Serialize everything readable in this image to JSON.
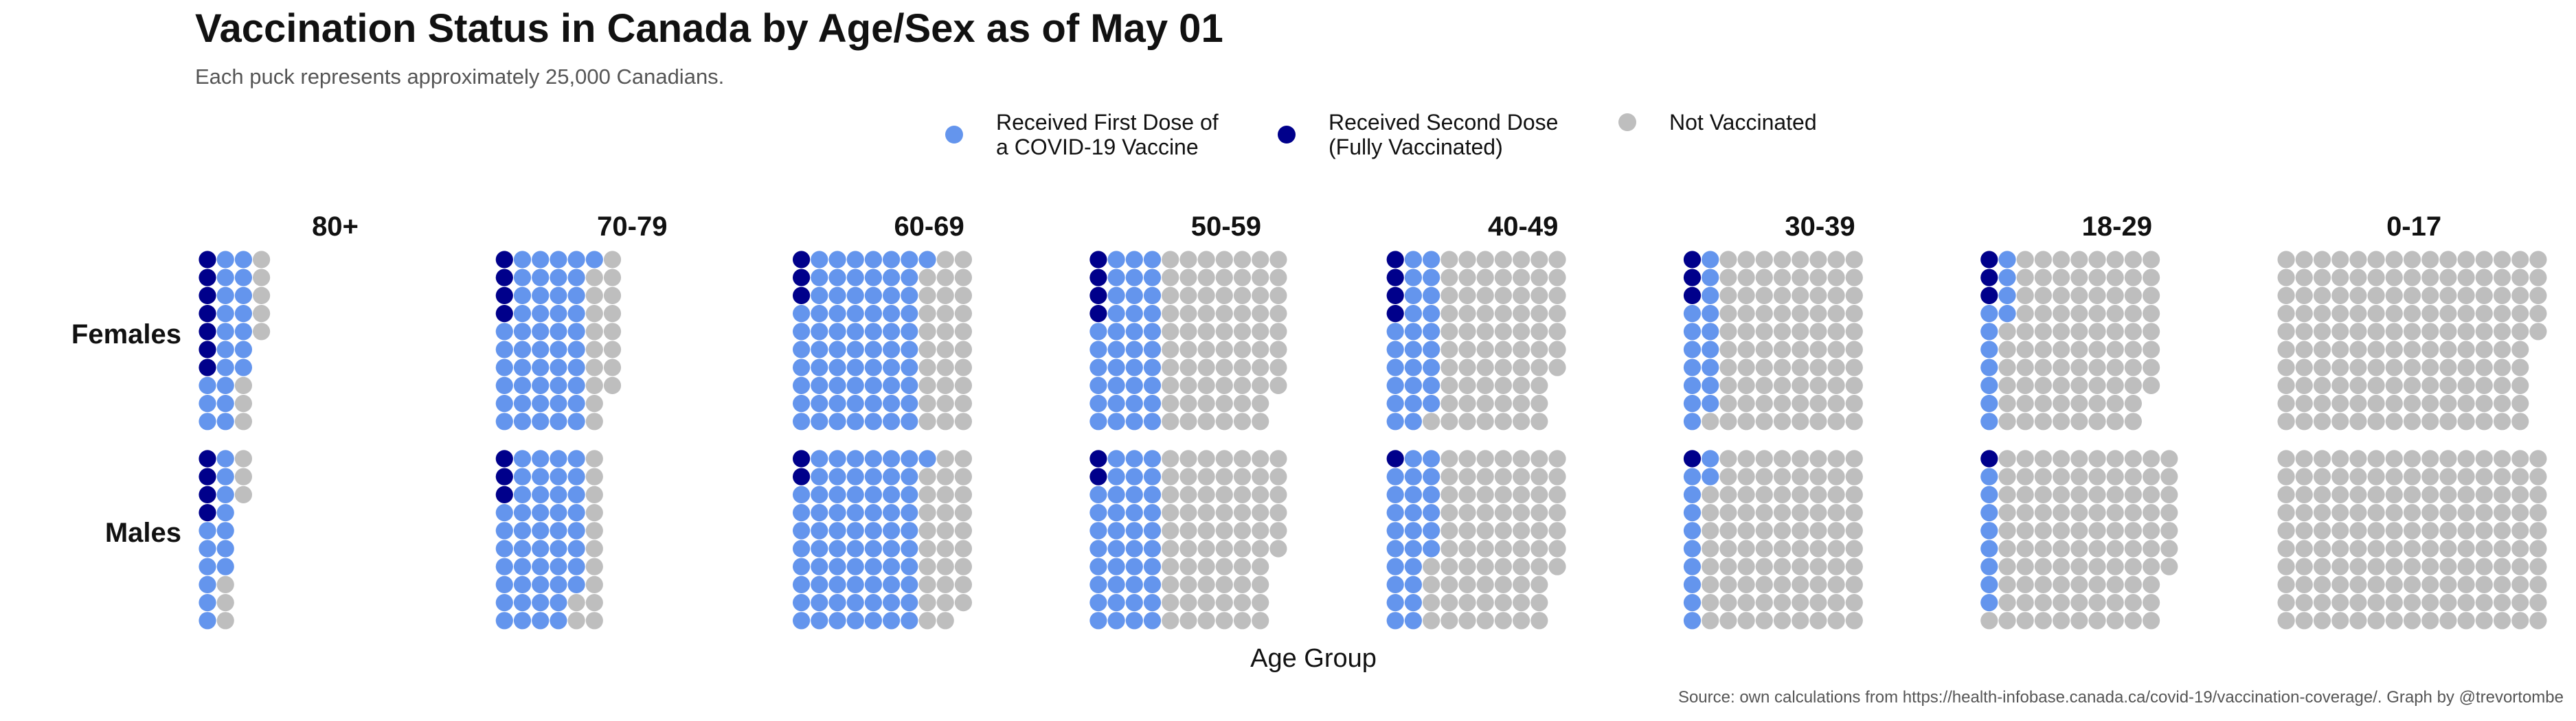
{
  "chart_data": {
    "type": "waffle",
    "title": "Vaccination Status in Canada by Age/Sex as of May 01",
    "subtitle": "Each puck represents approximately 25,000 Canadians.",
    "xlabel": "Age Group",
    "source": "Source: own calculations from https://health-infobase.canada.ca/covid-19/vaccination-coverage/. Graph by @trevortombe",
    "categories": [
      "80+",
      "70-79",
      "60-69",
      "50-59",
      "40-49",
      "30-39",
      "18-29",
      "0-17"
    ],
    "rows": [
      "Females",
      "Males"
    ],
    "unit_per_puck": 25000,
    "pucks_per_row": 10,
    "series": [
      {
        "name": "Received First Dose of\na COVID-19 Vaccine",
        "key": "first",
        "color": "#6495ED"
      },
      {
        "name": "Received Second Dose\n(Fully Vaccinated)",
        "key": "second",
        "color": "#00008B"
      },
      {
        "name": "Not Vaccinated",
        "key": "none",
        "color": "#BEBEBE"
      }
    ],
    "columns_per_group": [
      4,
      7,
      10,
      11,
      11,
      11,
      13,
      15
    ],
    "values": {
      "Females": [
        {
          "second": 7,
          "first": 20,
          "none": 8
        },
        {
          "second": 4,
          "first": 47,
          "none": 17
        },
        {
          "second": 3,
          "first": 68,
          "none": 29
        },
        {
          "second": 4,
          "first": 36,
          "none": 68
        },
        {
          "second": 4,
          "first": 25,
          "none": 68
        },
        {
          "second": 3,
          "first": 16,
          "none": 81
        },
        {
          "second": 3,
          "first": 11,
          "none": 84
        },
        {
          "second": 0,
          "first": 0,
          "none": 145
        }
      ],
      "Males": [
        {
          "second": 4,
          "first": 13,
          "none": 6
        },
        {
          "second": 3,
          "first": 45,
          "none": 12
        },
        {
          "second": 2,
          "first": 69,
          "none": 28
        },
        {
          "second": 2,
          "first": 38,
          "none": 66
        },
        {
          "second": 1,
          "first": 25,
          "none": 71
        },
        {
          "second": 1,
          "first": 11,
          "none": 88
        },
        {
          "second": 1,
          "first": 8,
          "none": 98
        },
        {
          "second": 0,
          "first": 0,
          "none": 150
        }
      ]
    }
  }
}
